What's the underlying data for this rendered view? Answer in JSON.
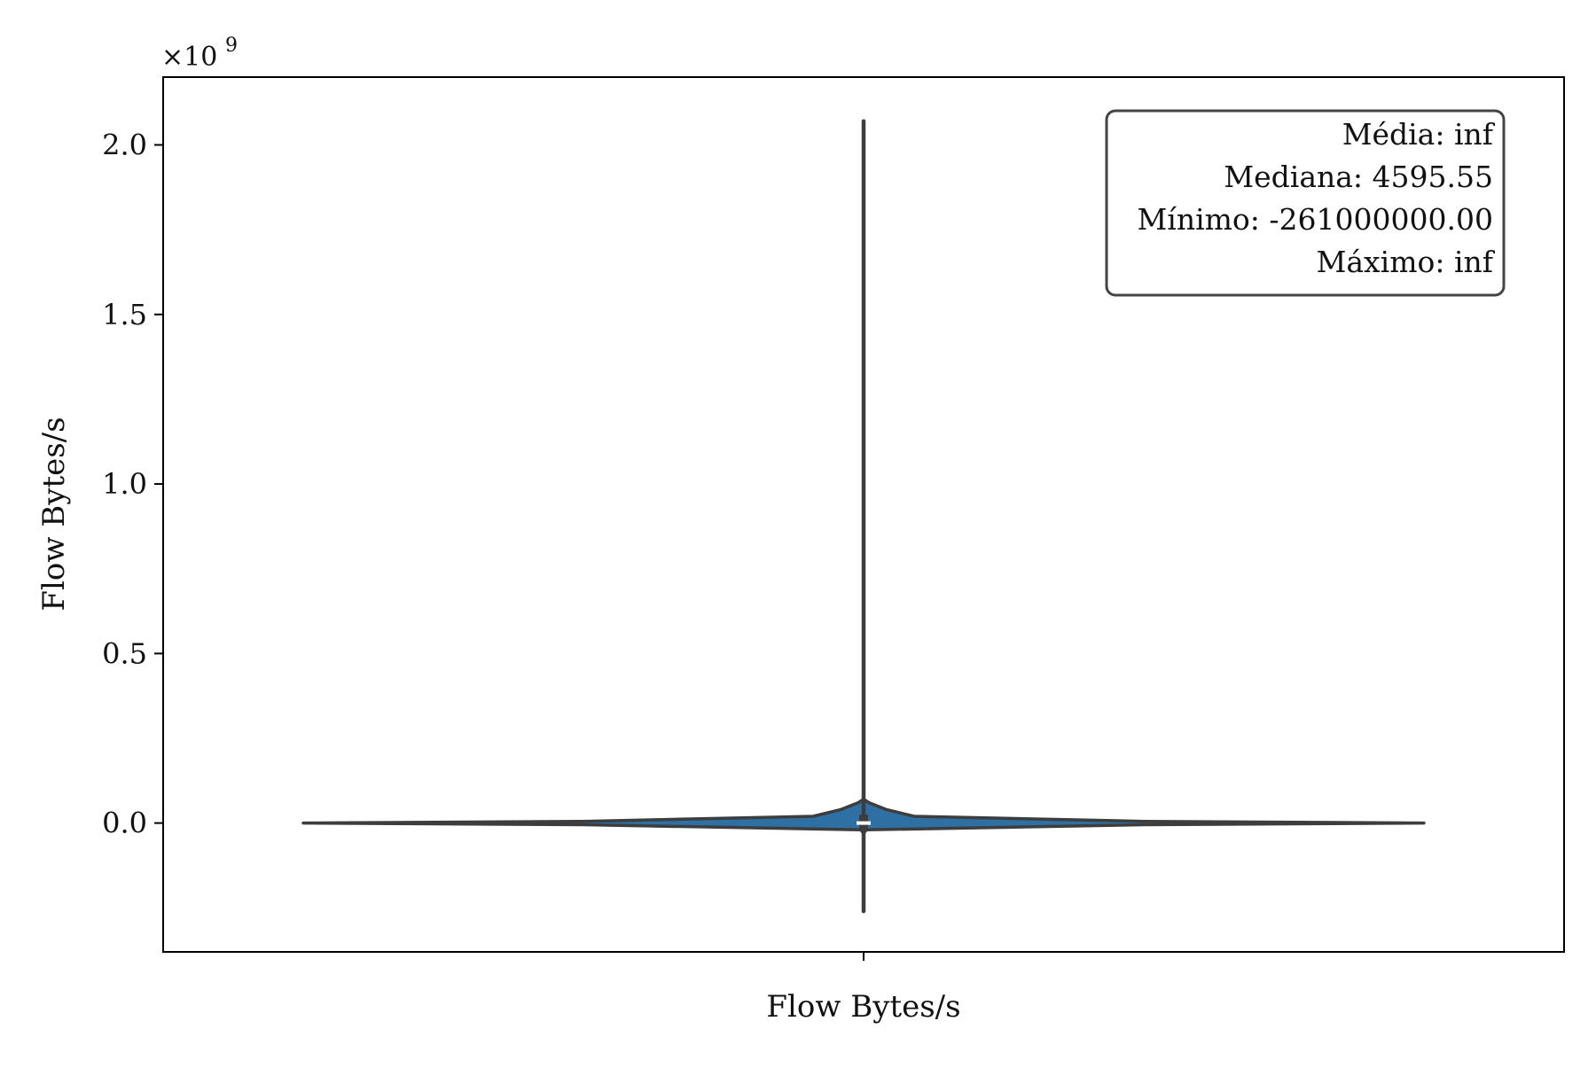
{
  "chart_data": {
    "type": "violin",
    "title": "",
    "xlabel": "Flow Bytes/s",
    "ylabel": "Flow Bytes/s",
    "categories": [
      "Flow Bytes/s"
    ],
    "y_scale_note": "×10",
    "y_scale_exponent": "9",
    "ylim": [
      -0.38,
      2.2
    ],
    "yticks": [
      0.0,
      0.5,
      1.0,
      1.5,
      2.0
    ],
    "ytick_labels": [
      "0.0",
      "0.5",
      "1.0",
      "1.5",
      "2.0"
    ],
    "grid": false,
    "stats": {
      "mean": "inf",
      "median": 4595.55,
      "min": -261000000.0,
      "max": "inf"
    },
    "whisker_range": [
      -0.26,
      2.07
    ],
    "iqr": [
      -0.0002,
      0.009
    ],
    "violin_color": "#2e6fa4",
    "edge_color": "#3d3d3d",
    "violin_profile": [
      {
        "y": -0.03,
        "half_width": 0.0
      },
      {
        "y": -0.02,
        "half_width": 0.005
      },
      {
        "y": -0.005,
        "half_width": 0.5
      },
      {
        "y": 0.0,
        "half_width": 1.0
      },
      {
        "y": 0.005,
        "half_width": 0.5
      },
      {
        "y": 0.02,
        "half_width": 0.09
      },
      {
        "y": 0.04,
        "half_width": 0.04
      },
      {
        "y": 0.06,
        "half_width": 0.01
      },
      {
        "y": 0.07,
        "half_width": 0.0
      }
    ],
    "stat_box": {
      "lines": [
        "Média: inf",
        "Mediana: 4595.55",
        "Mínimo: -261000000.00",
        "Máximo: inf"
      ],
      "placement": "top-right"
    }
  }
}
